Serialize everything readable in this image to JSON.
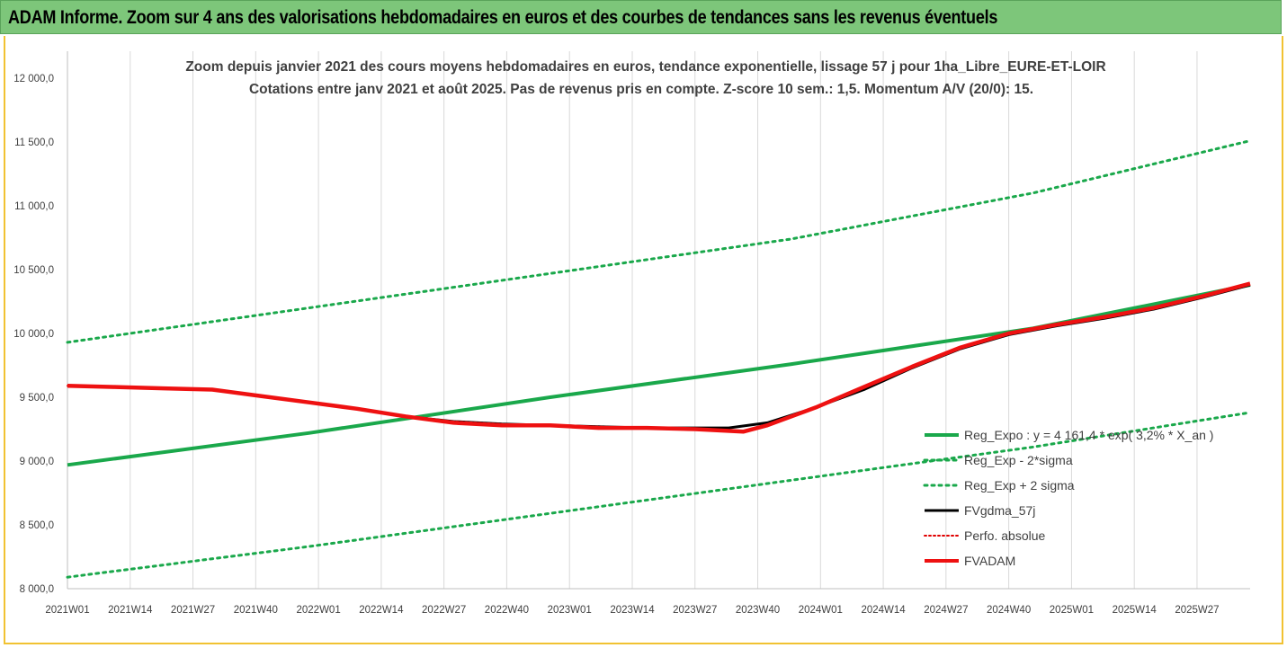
{
  "banner": {
    "text": "ADAM Informe. Zoom sur 4 ans des valorisations hebdomadaires en euros et des courbes de tendances sans les revenus éventuels",
    "background": "#7dc67a"
  },
  "chart_data": {
    "type": "line",
    "title": [
      "Zoom depuis janvier 2021 des cours moyens hebdomadaires en euros, tendance exponentielle, lissage 57 j pour 1ha_Libre_EURE-ET-LOIR",
      "Cotations entre janv 2021 et août 2025. Pas de revenus pris en compte. Z-score 10 sem.: 1,5. Momentum A/V (20/0): 15."
    ],
    "xlabel": "",
    "ylabel": "",
    "x_tick_labels": [
      "2021W01",
      "2021W14",
      "2021W27",
      "2021W40",
      "2022W01",
      "2022W14",
      "2022W27",
      "2022W40",
      "2023W01",
      "2023W14",
      "2023W27",
      "2023W40",
      "2024W01",
      "2024W14",
      "2024W27",
      "2024W40",
      "2025W01",
      "2025W14",
      "2025W27"
    ],
    "x_range_weeks": [
      0,
      245
    ],
    "y_tick_labels": [
      "8 000,0",
      "8 500,0",
      "9 000,0",
      "9 500,0",
      "10 000,0",
      "10 500,0",
      "11 000,0",
      "11 500,0",
      "12 000,0"
    ],
    "ylim": [
      8000,
      12000
    ],
    "grid": "vertical",
    "legend_position": "right",
    "series": [
      {
        "name": "Reg_Expo : y = 4 161,4 * exp( 3,2% *  X_an )",
        "color": "#1aa84b",
        "style": "solid",
        "width": 4,
        "points": [
          [
            0,
            8970
          ],
          [
            50,
            9220
          ],
          [
            100,
            9500
          ],
          [
            150,
            9760
          ],
          [
            200,
            10040
          ],
          [
            245,
            10380
          ]
        ]
      },
      {
        "name": "Reg_Exp - 2*sigma",
        "color": "#1aa84b",
        "style": "dotted",
        "width": 3,
        "points": [
          [
            0,
            8090
          ],
          [
            50,
            8330
          ],
          [
            100,
            8590
          ],
          [
            150,
            8850
          ],
          [
            200,
            9110
          ],
          [
            245,
            9380
          ]
        ]
      },
      {
        "name": "Reg_Exp + 2 sigma",
        "color": "#1aa84b",
        "style": "dotted",
        "width": 3,
        "points": [
          [
            0,
            9930
          ],
          [
            50,
            10200
          ],
          [
            100,
            10470
          ],
          [
            150,
            10740
          ],
          [
            200,
            11100
          ],
          [
            245,
            11510
          ]
        ]
      },
      {
        "name": "FVgdma_57j",
        "color": "#000000",
        "style": "solid",
        "width": 3,
        "points": [
          [
            0,
            9590
          ],
          [
            10,
            9580
          ],
          [
            20,
            9570
          ],
          [
            30,
            9560
          ],
          [
            40,
            9510
          ],
          [
            50,
            9460
          ],
          [
            60,
            9410
          ],
          [
            70,
            9350
          ],
          [
            80,
            9310
          ],
          [
            90,
            9290
          ],
          [
            100,
            9280
          ],
          [
            110,
            9270
          ],
          [
            120,
            9260
          ],
          [
            130,
            9260
          ],
          [
            137,
            9260
          ],
          [
            145,
            9300
          ],
          [
            155,
            9420
          ],
          [
            165,
            9560
          ],
          [
            175,
            9730
          ],
          [
            185,
            9880
          ],
          [
            195,
            9990
          ],
          [
            205,
            10060
          ],
          [
            215,
            10120
          ],
          [
            225,
            10190
          ],
          [
            235,
            10280
          ],
          [
            245,
            10380
          ]
        ]
      },
      {
        "name": "Perfo. absolue",
        "color": "#e00000",
        "style": "dotted",
        "width": 2,
        "points": [
          [
            0,
            9590
          ],
          [
            10,
            9580
          ],
          [
            20,
            9570
          ],
          [
            30,
            9560
          ],
          [
            40,
            9510
          ],
          [
            50,
            9460
          ],
          [
            60,
            9410
          ],
          [
            70,
            9350
          ],
          [
            80,
            9310
          ],
          [
            90,
            9290
          ],
          [
            100,
            9280
          ],
          [
            110,
            9270
          ],
          [
            120,
            9260
          ],
          [
            130,
            9250
          ],
          [
            140,
            9230
          ],
          [
            145,
            9280
          ],
          [
            155,
            9420
          ],
          [
            165,
            9580
          ],
          [
            175,
            9740
          ],
          [
            185,
            9890
          ],
          [
            195,
            10000
          ],
          [
            205,
            10070
          ],
          [
            215,
            10130
          ],
          [
            225,
            10200
          ],
          [
            235,
            10290
          ],
          [
            245,
            10390
          ]
        ]
      },
      {
        "name": "FVADAM",
        "color": "#ee1111",
        "style": "solid",
        "width": 4.5,
        "points": [
          [
            0,
            9590
          ],
          [
            10,
            9580
          ],
          [
            20,
            9570
          ],
          [
            30,
            9560
          ],
          [
            40,
            9510
          ],
          [
            50,
            9460
          ],
          [
            60,
            9410
          ],
          [
            70,
            9350
          ],
          [
            80,
            9300
          ],
          [
            90,
            9280
          ],
          [
            100,
            9280
          ],
          [
            110,
            9260
          ],
          [
            120,
            9260
          ],
          [
            130,
            9250
          ],
          [
            140,
            9230
          ],
          [
            145,
            9280
          ],
          [
            155,
            9420
          ],
          [
            165,
            9580
          ],
          [
            175,
            9740
          ],
          [
            185,
            9890
          ],
          [
            195,
            10000
          ],
          [
            205,
            10070
          ],
          [
            215,
            10130
          ],
          [
            225,
            10200
          ],
          [
            235,
            10290
          ],
          [
            245,
            10390
          ]
        ]
      }
    ]
  }
}
